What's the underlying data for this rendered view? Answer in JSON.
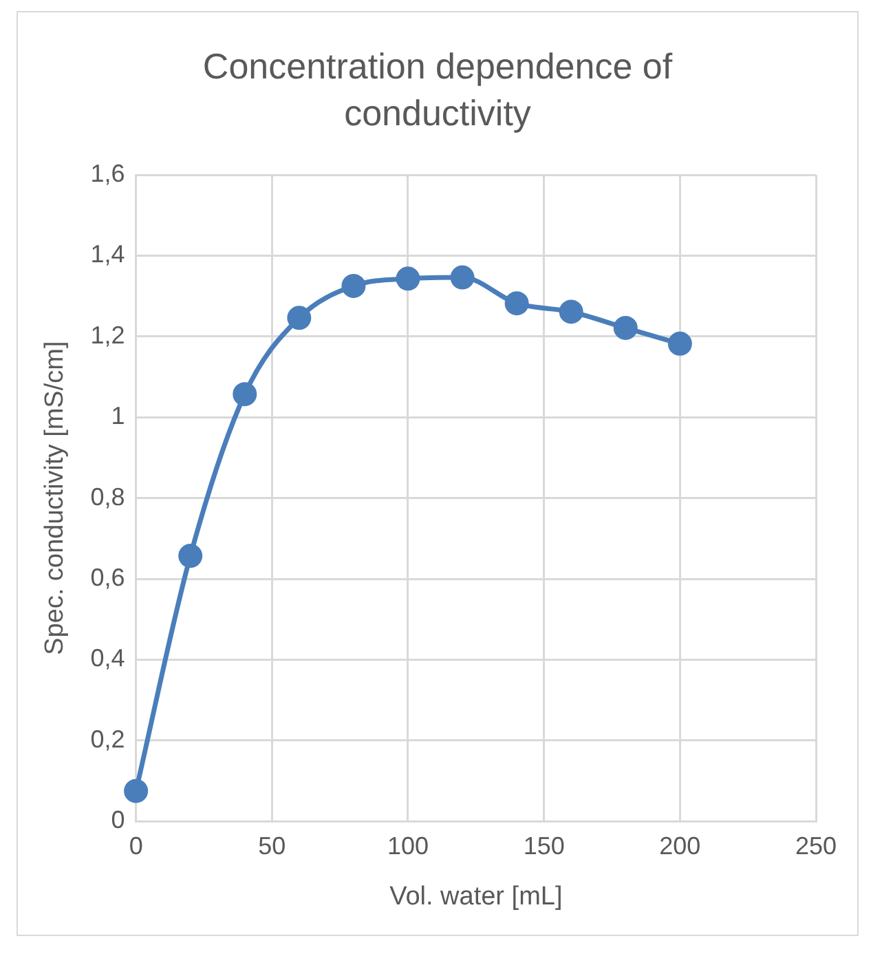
{
  "chart_data": {
    "type": "line",
    "title": "Concentration dependence of conductivity",
    "xlabel": "Vol. water [mL]",
    "ylabel": "Spec. conductivity [mS/cm]",
    "x": [
      0,
      20,
      40,
      60,
      80,
      100,
      120,
      140,
      160,
      180,
      200
    ],
    "series": [
      {
        "color": "#4a7ebb",
        "values": [
          0.075,
          0.657,
          1.057,
          1.246,
          1.325,
          1.343,
          1.346,
          1.282,
          1.261,
          1.221,
          1.182
        ]
      }
    ],
    "xlim": [
      0,
      250
    ],
    "xticks": [
      0,
      50,
      100,
      150,
      200,
      250
    ],
    "ylim": [
      0,
      1.6
    ],
    "yticks": [
      0,
      {
        "value": 0.2,
        "label": "0,2"
      },
      {
        "value": 0.4,
        "label": "0,4"
      },
      {
        "value": 0.6,
        "label": "0,6"
      },
      {
        "value": 0.8,
        "label": "0,8"
      },
      1,
      {
        "value": 1.2,
        "label": "1,2"
      },
      {
        "value": 1.4,
        "label": "1,4"
      },
      {
        "value": 1.6,
        "label": "1,6"
      }
    ],
    "grid": true,
    "legend": false,
    "marker": "circle",
    "line_style": "solid"
  }
}
